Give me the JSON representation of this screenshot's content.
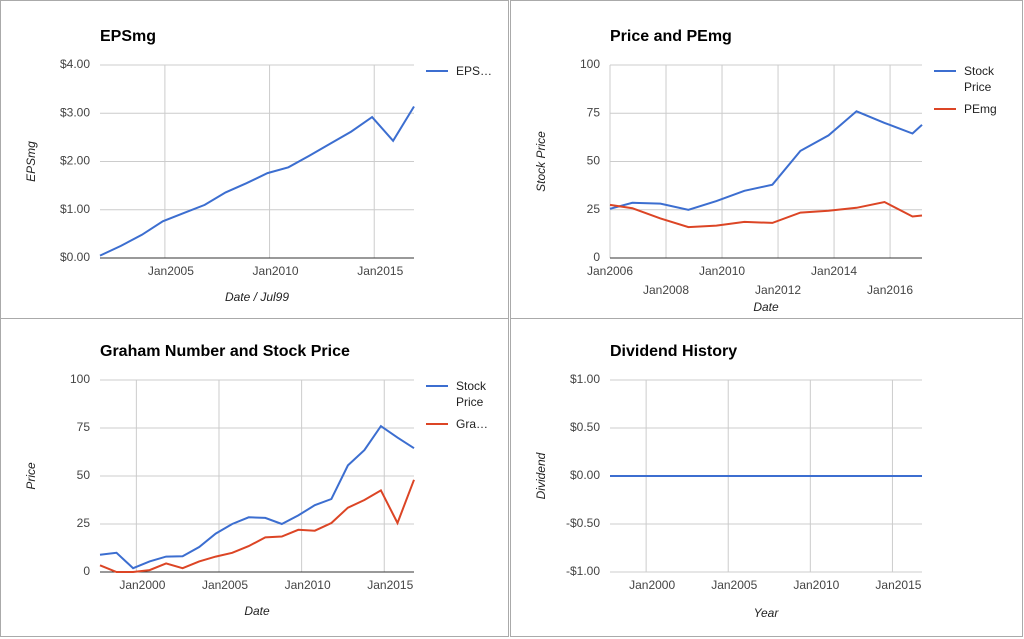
{
  "chart_data": [
    {
      "type": "line",
      "title": "EPSmg",
      "x_label": "Date / Jul99",
      "y_label": "EPSmg",
      "x": [
        2001.9,
        2002.9,
        2003.9,
        2004.9,
        2005.9,
        2006.9,
        2007.9,
        2008.9,
        2009.9,
        2010.9,
        2011.9,
        2012.9,
        2013.9,
        2014.9,
        2015.9,
        2016.9
      ],
      "series": [
        {
          "name": "EPS…",
          "color": "#3c6ed0",
          "values": [
            0.05,
            0.25,
            0.48,
            0.76,
            0.93,
            1.1,
            1.36,
            1.55,
            1.76,
            1.88,
            2.12,
            2.37,
            2.62,
            2.92,
            2.43,
            3.14
          ]
        }
      ],
      "xlim": [
        2001.9,
        2016.9
      ],
      "xticks": [
        {
          "value": 2005,
          "label": "Jan2005"
        },
        {
          "value": 2010,
          "label": "Jan2010"
        },
        {
          "value": 2015,
          "label": "Jan2015"
        }
      ],
      "ylim": [
        0,
        4
      ],
      "yticks": [
        {
          "value": 0,
          "label": "$0.00"
        },
        {
          "value": 1,
          "label": "$1.00"
        },
        {
          "value": 2,
          "label": "$2.00"
        },
        {
          "value": 3,
          "label": "$3.00"
        },
        {
          "value": 4,
          "label": "$4.00"
        }
      ],
      "grid": true,
      "legend": "right"
    },
    {
      "type": "line",
      "title": "Price and PEmg",
      "x_label": "Date",
      "y_label": "Stock Price",
      "x": [
        2006.0,
        2006.8,
        2007.8,
        2008.8,
        2009.8,
        2010.8,
        2011.8,
        2012.8,
        2013.8,
        2014.8,
        2015.8,
        2016.8,
        2017.14
      ],
      "series": [
        {
          "name": "Stock Price",
          "color": "#3c6ed0",
          "values": [
            25.5,
            28.6,
            28.2,
            25,
            29.5,
            34.8,
            38,
            55.5,
            63.5,
            76,
            70,
            64.5,
            69
          ]
        },
        {
          "name": "PEmg",
          "color": "#dc4525",
          "values": [
            27.5,
            25.8,
            20.5,
            16,
            16.8,
            18.7,
            18.2,
            23.5,
            24.5,
            26,
            29,
            21.5,
            22
          ]
        }
      ],
      "xlim": [
        2006,
        2017.14
      ],
      "xticks": [
        {
          "value": 2006,
          "label": "Jan2006"
        },
        {
          "value": 2008,
          "label": "Jan2008"
        },
        {
          "value": 2010,
          "label": "Jan2010"
        },
        {
          "value": 2012,
          "label": "Jan2012"
        },
        {
          "value": 2014,
          "label": "Jan2014"
        },
        {
          "value": 2016,
          "label": "Jan2016"
        }
      ],
      "ylim": [
        0,
        100
      ],
      "yticks": [
        0,
        25,
        50,
        75,
        100
      ],
      "grid": true,
      "legend": "right"
    },
    {
      "type": "line",
      "title": "Graham Number and Stock Price",
      "x_label": "Date",
      "y_label": "Price",
      "x": [
        1997.8,
        1998.8,
        1999.8,
        2000.8,
        2001.8,
        2002.8,
        2003.8,
        2004.8,
        2005.8,
        2006.8,
        2007.8,
        2008.8,
        2009.8,
        2010.8,
        2011.8,
        2012.8,
        2013.8,
        2014.8,
        2015.8,
        2016.8
      ],
      "series": [
        {
          "name": "Stock Price",
          "color": "#3c6ed0",
          "values": [
            9,
            10,
            2,
            5.5,
            8,
            8.2,
            13,
            20,
            25,
            28.5,
            28.2,
            25,
            29.5,
            34.8,
            38,
            55.5,
            63.5,
            76,
            70,
            64.5
          ]
        },
        {
          "name": "Gra…",
          "color": "#dc4525",
          "values": [
            3.5,
            0,
            0,
            1,
            4.5,
            2,
            5.5,
            8,
            10,
            13.5,
            18,
            18.5,
            22,
            21.5,
            25.5,
            33.5,
            37.5,
            42.5,
            25.5,
            48
          ]
        }
      ],
      "xlim": [
        1997.8,
        2016.8
      ],
      "xticks": [
        {
          "value": 2000,
          "label": "Jan2000"
        },
        {
          "value": 2005,
          "label": "Jan2005"
        },
        {
          "value": 2010,
          "label": "Jan2010"
        },
        {
          "value": 2015,
          "label": "Jan2015"
        }
      ],
      "ylim": [
        0,
        100
      ],
      "yticks": [
        0,
        25,
        50,
        75,
        100
      ],
      "grid": true,
      "legend": "right"
    },
    {
      "type": "line",
      "title": "Dividend History",
      "x_label": "Year",
      "y_label": "Dividend",
      "x": [
        1997.8,
        1998.8,
        1999.8,
        2000.8,
        2001.8,
        2002.8,
        2003.8,
        2004.8,
        2005.8,
        2006.8,
        2007.8,
        2008.8,
        2009.8,
        2010.8,
        2011.8,
        2012.8,
        2013.8,
        2014.8,
        2015.8,
        2016.8
      ],
      "series": [
        {
          "color": "#3c6ed0",
          "values": [
            0,
            0,
            0,
            0,
            0,
            0,
            0,
            0,
            0,
            0,
            0,
            0,
            0,
            0,
            0,
            0,
            0,
            0,
            0,
            0
          ]
        }
      ],
      "xlim": [
        1997.8,
        2016.8
      ],
      "xticks": [
        {
          "value": 2000,
          "label": "Jan2000"
        },
        {
          "value": 2005,
          "label": "Jan2005"
        },
        {
          "value": 2010,
          "label": "Jan2010"
        },
        {
          "value": 2015,
          "label": "Jan2015"
        }
      ],
      "ylim": [
        -1,
        1
      ],
      "yticks": [
        {
          "value": -1,
          "label": "-$1.00"
        },
        {
          "value": -0.5,
          "label": "-$0.50"
        },
        {
          "value": 0,
          "label": "$0.00"
        },
        {
          "value": 0.5,
          "label": "$0.50"
        },
        {
          "value": 1,
          "label": "$1.00"
        }
      ],
      "grid": true
    }
  ]
}
